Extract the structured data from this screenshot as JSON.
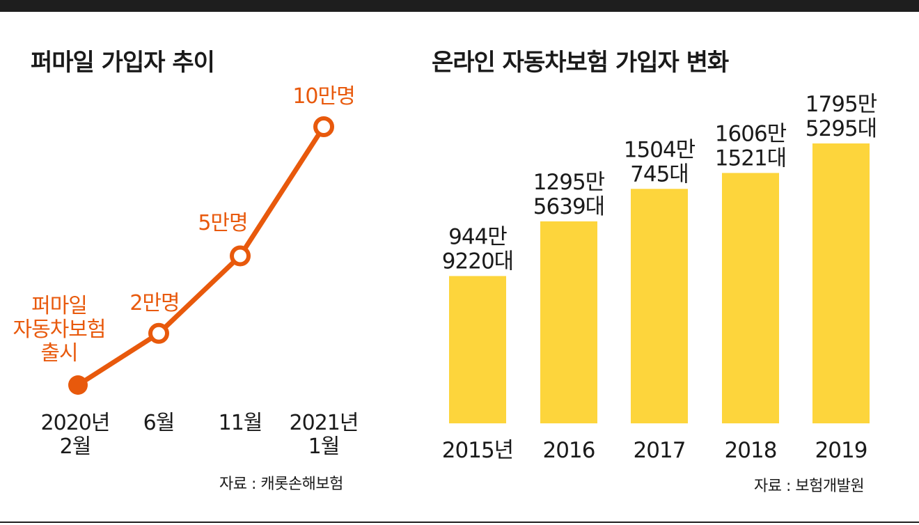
{
  "chart_data": [
    {
      "type": "line",
      "title": "퍼마일 가입자 추이",
      "x_lines": [
        [
          "2020년",
          "2월"
        ],
        [
          "6월"
        ],
        [
          "11월"
        ],
        [
          "2021년",
          "1월"
        ]
      ],
      "values": [
        0,
        2,
        5,
        10
      ],
      "unit": "만명",
      "data_labels": [
        [
          "퍼마일",
          "자동차보험",
          "출시"
        ],
        [
          "2만명"
        ],
        [
          "5만명"
        ],
        [
          "10만명"
        ]
      ],
      "ylim": [
        0,
        10.5
      ],
      "grid": false,
      "source": "자료 : 캐롯손해보험",
      "colors": {
        "line": "#e8590c",
        "label": "#e8590c"
      }
    },
    {
      "type": "bar",
      "title": "온라인 자동차보험 가입자 변화",
      "categories": [
        "2015년",
        "2016",
        "2017",
        "2018",
        "2019"
      ],
      "values": [
        9449220,
        12955639,
        15040745,
        16061521,
        17955295
      ],
      "value_labels": [
        [
          "944만",
          "9220대"
        ],
        [
          "1295만",
          "5639대"
        ],
        [
          "1504만",
          "745대"
        ],
        [
          "1606만",
          "1521대"
        ],
        [
          "1795만",
          "5295대"
        ]
      ],
      "ylim": [
        0,
        19000000
      ],
      "grid": false,
      "source": "자료 : 보험개발원",
      "colors": {
        "bar": "#fdd53c"
      }
    }
  ],
  "colors": {
    "text": "#1a1a1a",
    "rule": "#1e1e1e"
  }
}
